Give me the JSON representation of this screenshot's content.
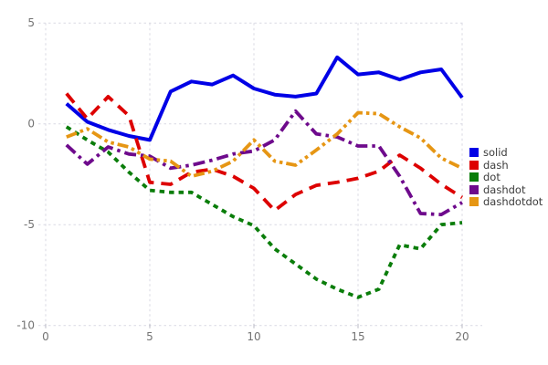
{
  "chart_data": {
    "type": "line",
    "title": "",
    "xlabel": "",
    "ylabel": "",
    "xlim": [
      0,
      20
    ],
    "ylim": [
      -10,
      5
    ],
    "x_ticks": [
      "0",
      "5",
      "10",
      "15",
      "20"
    ],
    "y_ticks": [
      "-10",
      "-5",
      "0",
      "5"
    ],
    "grid": "dotted",
    "legend_position": "right",
    "x": [
      1,
      2,
      3,
      4,
      5,
      6,
      7,
      8,
      9,
      10,
      11,
      12,
      13,
      14,
      15,
      16,
      17,
      18,
      19,
      20
    ],
    "series": [
      {
        "name": "solid",
        "color": "#0000e6",
        "line_style": "solid",
        "values": [
          1.0,
          0.1,
          -0.3,
          -0.6,
          -0.8,
          1.6,
          2.1,
          1.95,
          2.4,
          1.75,
          1.45,
          1.35,
          1.5,
          3.3,
          2.45,
          2.55,
          2.2,
          2.55,
          2.7,
          1.3
        ]
      },
      {
        "name": "dash",
        "color": "#dd0000",
        "line_style": "dash",
        "values": [
          1.5,
          0.25,
          1.35,
          0.4,
          -2.9,
          -3.0,
          -2.4,
          -2.25,
          -2.6,
          -3.2,
          -4.3,
          -3.5,
          -3.05,
          -2.9,
          -2.7,
          -2.35,
          -1.55,
          -2.2,
          -3.0,
          -3.65
        ]
      },
      {
        "name": "dot",
        "color": "#0a7d0a",
        "line_style": "dot",
        "values": [
          -0.15,
          -0.8,
          -1.4,
          -2.4,
          -3.3,
          -3.4,
          -3.4,
          -4.0,
          -4.6,
          -5.05,
          -6.2,
          -6.95,
          -7.7,
          -8.2,
          -8.6,
          -8.2,
          -6.0,
          -6.2,
          -5.0,
          -4.9
        ]
      },
      {
        "name": "dashdot",
        "color": "#6e0a8c",
        "line_style": "dashdot",
        "values": [
          -1.05,
          -2.0,
          -1.15,
          -1.5,
          -1.6,
          -2.2,
          -2.05,
          -1.8,
          -1.5,
          -1.35,
          -0.8,
          0.63,
          -0.5,
          -0.65,
          -1.1,
          -1.1,
          -2.6,
          -4.45,
          -4.5,
          -3.9
        ]
      },
      {
        "name": "dashdotdot",
        "color": "#e69614",
        "line_style": "dashdotdot",
        "values": [
          -0.65,
          -0.25,
          -0.9,
          -1.15,
          -1.75,
          -1.85,
          -2.6,
          -2.35,
          -1.85,
          -0.8,
          -1.85,
          -2.05,
          -1.3,
          -0.5,
          0.55,
          0.5,
          -0.15,
          -0.7,
          -1.7,
          -2.2
        ]
      }
    ],
    "colors": {
      "grid": "#d9d9e3",
      "tick_label": "#737373",
      "legend_text": "#3b3b3b",
      "background": "#ffffff"
    }
  }
}
